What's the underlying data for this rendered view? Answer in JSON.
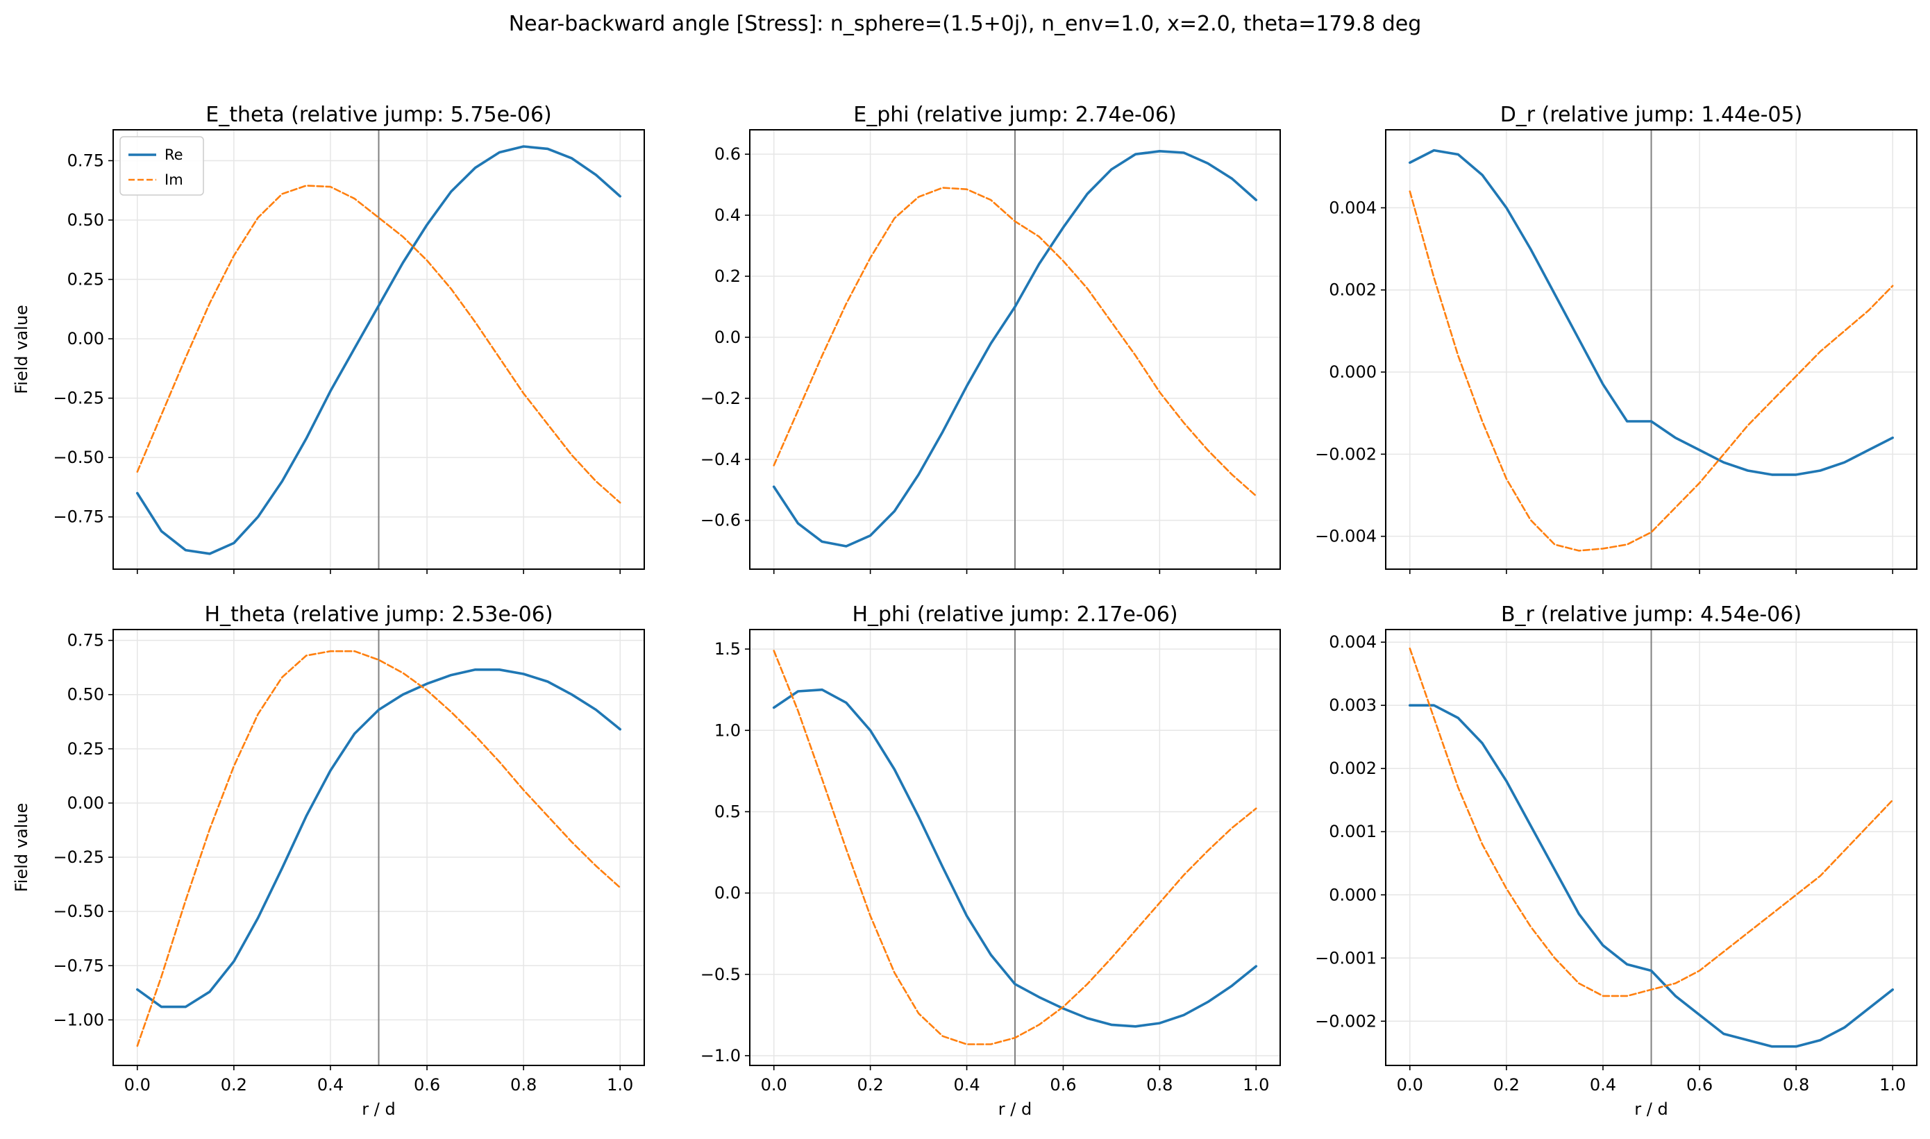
{
  "figure": {
    "title": "Near-backward angle [Stress]: n_sphere=(1.5+0j), n_env=1.0, x=2.0, theta=179.8 deg",
    "colors": {
      "Re": "#1f77b4",
      "Im": "#ff7f0e",
      "interface": "#808080",
      "grid": "#e6e6e6"
    }
  },
  "chart_data": [
    {
      "type": "line",
      "title": "E_theta (relative jump: 5.75e-06)",
      "xlabel": "",
      "ylabel": "Field value",
      "xlim": [
        -0.05,
        1.05
      ],
      "ylim": [
        -0.97,
        0.88
      ],
      "xticks": [
        0.0,
        0.2,
        0.4,
        0.6,
        0.8,
        1.0
      ],
      "show_xticklabels": false,
      "yticks": [
        -0.75,
        -0.5,
        -0.25,
        0.0,
        0.25,
        0.5,
        0.75
      ],
      "yticklabels": [
        "−0.75",
        "−0.50",
        "−0.25",
        "0.00",
        "0.25",
        "0.50",
        "0.75"
      ],
      "interface_x": 0.5,
      "grid": true,
      "legend": {
        "location": "upper-left",
        "entries": [
          "Re",
          "Im"
        ]
      },
      "series": [
        {
          "name": "Re",
          "style": "solid",
          "x": [
            0.0,
            0.05,
            0.1,
            0.15,
            0.2,
            0.25,
            0.3,
            0.35,
            0.4,
            0.45,
            0.5,
            0.55,
            0.6,
            0.65,
            0.7,
            0.75,
            0.8,
            0.85,
            0.9,
            0.95,
            1.0
          ],
          "y": [
            -0.65,
            -0.81,
            -0.89,
            -0.905,
            -0.86,
            -0.75,
            -0.6,
            -0.42,
            -0.22,
            -0.04,
            0.14,
            0.32,
            0.48,
            0.62,
            0.72,
            0.785,
            0.81,
            0.8,
            0.76,
            0.69,
            0.6
          ]
        },
        {
          "name": "Im",
          "style": "dashed",
          "x": [
            0.0,
            0.05,
            0.1,
            0.15,
            0.2,
            0.25,
            0.3,
            0.35,
            0.4,
            0.45,
            0.5,
            0.55,
            0.6,
            0.65,
            0.7,
            0.75,
            0.8,
            0.85,
            0.9,
            0.95,
            1.0
          ],
          "y": [
            -0.56,
            -0.32,
            -0.08,
            0.15,
            0.35,
            0.51,
            0.61,
            0.645,
            0.64,
            0.59,
            0.51,
            0.43,
            0.33,
            0.21,
            0.07,
            -0.08,
            -0.23,
            -0.36,
            -0.49,
            -0.6,
            -0.69
          ]
        }
      ]
    },
    {
      "type": "line",
      "title": "E_phi (relative jump: 2.74e-06)",
      "xlabel": "",
      "ylabel": "",
      "xlim": [
        -0.05,
        1.05
      ],
      "ylim": [
        -0.76,
        0.68
      ],
      "xticks": [
        0.0,
        0.2,
        0.4,
        0.6,
        0.8,
        1.0
      ],
      "show_xticklabels": false,
      "yticks": [
        -0.6,
        -0.4,
        -0.2,
        0.0,
        0.2,
        0.4,
        0.6
      ],
      "yticklabels": [
        "−0.6",
        "−0.4",
        "−0.2",
        "0.0",
        "0.2",
        "0.4",
        "0.6"
      ],
      "interface_x": 0.5,
      "grid": true,
      "series": [
        {
          "name": "Re",
          "style": "solid",
          "x": [
            0.0,
            0.05,
            0.1,
            0.15,
            0.2,
            0.25,
            0.3,
            0.35,
            0.4,
            0.45,
            0.5,
            0.55,
            0.6,
            0.65,
            0.7,
            0.75,
            0.8,
            0.85,
            0.9,
            0.95,
            1.0
          ],
          "y": [
            -0.49,
            -0.61,
            -0.67,
            -0.685,
            -0.65,
            -0.57,
            -0.45,
            -0.31,
            -0.16,
            -0.02,
            0.1,
            0.24,
            0.36,
            0.47,
            0.55,
            0.6,
            0.61,
            0.605,
            0.57,
            0.52,
            0.45
          ]
        },
        {
          "name": "Im",
          "style": "dashed",
          "x": [
            0.0,
            0.05,
            0.1,
            0.15,
            0.2,
            0.25,
            0.3,
            0.35,
            0.4,
            0.45,
            0.5,
            0.55,
            0.6,
            0.65,
            0.7,
            0.75,
            0.8,
            0.85,
            0.9,
            0.95,
            1.0
          ],
          "y": [
            -0.42,
            -0.24,
            -0.06,
            0.11,
            0.26,
            0.39,
            0.46,
            0.49,
            0.485,
            0.45,
            0.38,
            0.33,
            0.25,
            0.16,
            0.05,
            -0.06,
            -0.18,
            -0.28,
            -0.37,
            -0.45,
            -0.52
          ]
        }
      ]
    },
    {
      "type": "line",
      "title": "D_r (relative jump: 1.44e-05)",
      "xlabel": "",
      "ylabel": "",
      "xlim": [
        -0.05,
        1.05
      ],
      "ylim": [
        -0.0048,
        0.0059
      ],
      "xticks": [
        0.0,
        0.2,
        0.4,
        0.6,
        0.8,
        1.0
      ],
      "show_xticklabels": false,
      "yticks": [
        -0.004,
        -0.002,
        0.0,
        0.002,
        0.004
      ],
      "yticklabels": [
        "−0.004",
        "−0.002",
        "0.000",
        "0.002",
        "0.004"
      ],
      "interface_x": 0.5,
      "grid": true,
      "series": [
        {
          "name": "Re",
          "style": "solid",
          "x": [
            0.0,
            0.05,
            0.1,
            0.15,
            0.2,
            0.25,
            0.3,
            0.35,
            0.4,
            0.45,
            0.5,
            0.55,
            0.6,
            0.65,
            0.7,
            0.75,
            0.8,
            0.85,
            0.9,
            0.95,
            1.0
          ],
          "y": [
            0.0051,
            0.0054,
            0.0053,
            0.0048,
            0.004,
            0.003,
            0.0019,
            0.0008,
            -0.0003,
            -0.0012,
            -0.0012,
            -0.0016,
            -0.0019,
            -0.0022,
            -0.0024,
            -0.0025,
            -0.0025,
            -0.0024,
            -0.0022,
            -0.0019,
            -0.0016
          ]
        },
        {
          "name": "Im",
          "style": "dashed",
          "x": [
            0.0,
            0.05,
            0.1,
            0.15,
            0.2,
            0.25,
            0.3,
            0.35,
            0.4,
            0.45,
            0.5,
            0.55,
            0.6,
            0.65,
            0.7,
            0.75,
            0.8,
            0.85,
            0.9,
            0.95,
            1.0
          ],
          "y": [
            0.0044,
            0.0023,
            0.0004,
            -0.0012,
            -0.0026,
            -0.0036,
            -0.0042,
            -0.00435,
            -0.0043,
            -0.0042,
            -0.0039,
            -0.0033,
            -0.0027,
            -0.002,
            -0.0013,
            -0.0007,
            -0.0001,
            0.0005,
            0.001,
            0.0015,
            0.0021
          ]
        }
      ]
    },
    {
      "type": "line",
      "title": "H_theta (relative jump: 2.53e-06)",
      "xlabel": "r / d",
      "ylabel": "Field value",
      "xlim": [
        -0.05,
        1.05
      ],
      "ylim": [
        -1.21,
        0.8
      ],
      "xticks": [
        0.0,
        0.2,
        0.4,
        0.6,
        0.8,
        1.0
      ],
      "show_xticklabels": true,
      "xticklabels": [
        "0.0",
        "0.2",
        "0.4",
        "0.6",
        "0.8",
        "1.0"
      ],
      "yticks": [
        -1.0,
        -0.75,
        -0.5,
        -0.25,
        0.0,
        0.25,
        0.5,
        0.75
      ],
      "yticklabels": [
        "−1.00",
        "−0.75",
        "−0.50",
        "−0.25",
        "0.00",
        "0.25",
        "0.50",
        "0.75"
      ],
      "interface_x": 0.5,
      "grid": true,
      "series": [
        {
          "name": "Re",
          "style": "solid",
          "x": [
            0.0,
            0.05,
            0.1,
            0.15,
            0.2,
            0.25,
            0.3,
            0.35,
            0.4,
            0.45,
            0.5,
            0.55,
            0.6,
            0.65,
            0.7,
            0.75,
            0.8,
            0.85,
            0.9,
            0.95,
            1.0
          ],
          "y": [
            -0.86,
            -0.94,
            -0.94,
            -0.87,
            -0.73,
            -0.53,
            -0.3,
            -0.06,
            0.15,
            0.32,
            0.43,
            0.5,
            0.55,
            0.59,
            0.615,
            0.615,
            0.595,
            0.56,
            0.5,
            0.43,
            0.34
          ]
        },
        {
          "name": "Im",
          "style": "dashed",
          "x": [
            0.0,
            0.05,
            0.1,
            0.15,
            0.2,
            0.25,
            0.3,
            0.35,
            0.4,
            0.45,
            0.5,
            0.55,
            0.6,
            0.65,
            0.7,
            0.75,
            0.8,
            0.85,
            0.9,
            0.95,
            1.0
          ],
          "y": [
            -1.12,
            -0.8,
            -0.45,
            -0.12,
            0.17,
            0.41,
            0.58,
            0.68,
            0.7,
            0.7,
            0.66,
            0.6,
            0.52,
            0.42,
            0.31,
            0.19,
            0.06,
            -0.06,
            -0.18,
            -0.29,
            -0.39
          ]
        }
      ]
    },
    {
      "type": "line",
      "title": "H_phi (relative jump: 2.17e-06)",
      "xlabel": "r / d",
      "ylabel": "",
      "xlim": [
        -0.05,
        1.05
      ],
      "ylim": [
        -1.06,
        1.62
      ],
      "xticks": [
        0.0,
        0.2,
        0.4,
        0.6,
        0.8,
        1.0
      ],
      "show_xticklabels": true,
      "xticklabels": [
        "0.0",
        "0.2",
        "0.4",
        "0.6",
        "0.8",
        "1.0"
      ],
      "yticks": [
        -1.0,
        -0.5,
        0.0,
        0.5,
        1.0,
        1.5
      ],
      "yticklabels": [
        "−1.0",
        "−0.5",
        "0.0",
        "0.5",
        "1.0",
        "1.5"
      ],
      "interface_x": 0.5,
      "grid": true,
      "series": [
        {
          "name": "Re",
          "style": "solid",
          "x": [
            0.0,
            0.05,
            0.1,
            0.15,
            0.2,
            0.25,
            0.3,
            0.35,
            0.4,
            0.45,
            0.5,
            0.55,
            0.6,
            0.65,
            0.7,
            0.75,
            0.8,
            0.85,
            0.9,
            0.95,
            1.0
          ],
          "y": [
            1.14,
            1.24,
            1.25,
            1.17,
            1.0,
            0.76,
            0.47,
            0.16,
            -0.14,
            -0.38,
            -0.56,
            -0.64,
            -0.71,
            -0.77,
            -0.81,
            -0.82,
            -0.8,
            -0.75,
            -0.67,
            -0.57,
            -0.45
          ]
        },
        {
          "name": "Im",
          "style": "dashed",
          "x": [
            0.0,
            0.05,
            0.1,
            0.15,
            0.2,
            0.25,
            0.3,
            0.35,
            0.4,
            0.45,
            0.5,
            0.55,
            0.6,
            0.65,
            0.7,
            0.75,
            0.8,
            0.85,
            0.9,
            0.95,
            1.0
          ],
          "y": [
            1.49,
            1.12,
            0.7,
            0.27,
            -0.14,
            -0.49,
            -0.74,
            -0.88,
            -0.93,
            -0.93,
            -0.89,
            -0.81,
            -0.7,
            -0.56,
            -0.4,
            -0.23,
            -0.06,
            0.11,
            0.26,
            0.4,
            0.52
          ]
        }
      ]
    },
    {
      "type": "line",
      "title": "B_r (relative jump: 4.54e-06)",
      "xlabel": "r / d",
      "ylabel": "",
      "xlim": [
        -0.05,
        1.05
      ],
      "ylim": [
        -0.0027,
        0.0042
      ],
      "xticks": [
        0.0,
        0.2,
        0.4,
        0.6,
        0.8,
        1.0
      ],
      "show_xticklabels": true,
      "xticklabels": [
        "0.0",
        "0.2",
        "0.4",
        "0.6",
        "0.8",
        "1.0"
      ],
      "yticks": [
        -0.002,
        -0.001,
        0.0,
        0.001,
        0.002,
        0.003,
        0.004
      ],
      "yticklabels": [
        "−0.002",
        "−0.001",
        "0.000",
        "0.001",
        "0.002",
        "0.003",
        "0.004"
      ],
      "interface_x": 0.5,
      "grid": true,
      "series": [
        {
          "name": "Re",
          "style": "solid",
          "x": [
            0.0,
            0.05,
            0.1,
            0.15,
            0.2,
            0.25,
            0.3,
            0.35,
            0.4,
            0.45,
            0.5,
            0.55,
            0.6,
            0.65,
            0.7,
            0.75,
            0.8,
            0.85,
            0.9,
            0.95,
            1.0
          ],
          "y": [
            0.003,
            0.003,
            0.0028,
            0.0024,
            0.0018,
            0.0011,
            0.0004,
            -0.0003,
            -0.0008,
            -0.0011,
            -0.0012,
            -0.0016,
            -0.0019,
            -0.0022,
            -0.0023,
            -0.0024,
            -0.0024,
            -0.0023,
            -0.0021,
            -0.0018,
            -0.0015
          ]
        },
        {
          "name": "Im",
          "style": "dashed",
          "x": [
            0.0,
            0.05,
            0.1,
            0.15,
            0.2,
            0.25,
            0.3,
            0.35,
            0.4,
            0.45,
            0.5,
            0.55,
            0.6,
            0.65,
            0.7,
            0.75,
            0.8,
            0.85,
            0.9,
            0.95,
            1.0
          ],
          "y": [
            0.0039,
            0.0028,
            0.0017,
            0.0008,
            0.0001,
            -0.0005,
            -0.001,
            -0.0014,
            -0.0016,
            -0.0016,
            -0.0015,
            -0.0014,
            -0.0012,
            -0.0009,
            -0.0006,
            -0.0003,
            0.0,
            0.0003,
            0.0007,
            0.0011,
            0.0015
          ]
        }
      ]
    }
  ]
}
